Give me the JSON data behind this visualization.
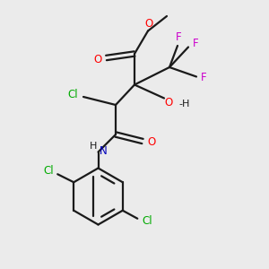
{
  "background_color": "#ebebeb",
  "bond_color": "#1a1a1a",
  "atom_colors": {
    "O": "#ff0000",
    "N": "#0000bb",
    "Cl_green": "#00aa00",
    "F": "#cc00cc",
    "C": "#1a1a1a"
  }
}
